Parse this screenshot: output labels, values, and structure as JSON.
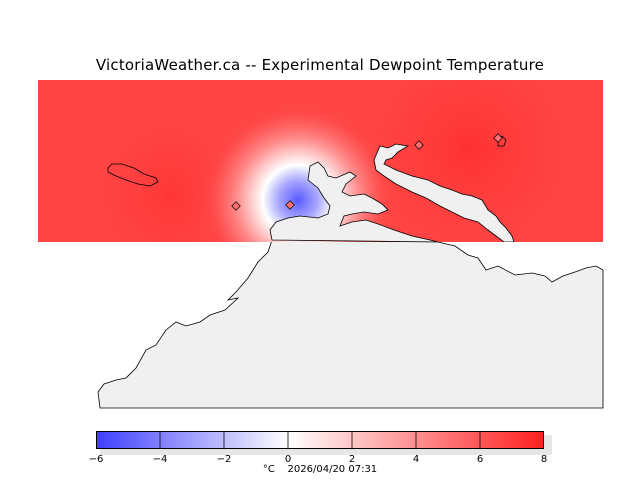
{
  "title": "VictoriaWeather.ca -- Experimental Dewpoint Temperature",
  "colorbar": {
    "ticks": [
      "−6",
      "−4",
      "−2",
      "0",
      "2",
      "4",
      "6",
      "8"
    ],
    "tick_values": [
      -6,
      -4,
      -2,
      0,
      2,
      4,
      6,
      8
    ],
    "min_color": "#4040ff",
    "mid_color": "#ffffff",
    "max_color": "#ff2020"
  },
  "footer": {
    "unit": "°C",
    "timestamp": "2026/04/20 07:31"
  },
  "colors": {
    "land": "#f0f0f0",
    "warm": "#ff4040",
    "cold": "#5050ff"
  }
}
